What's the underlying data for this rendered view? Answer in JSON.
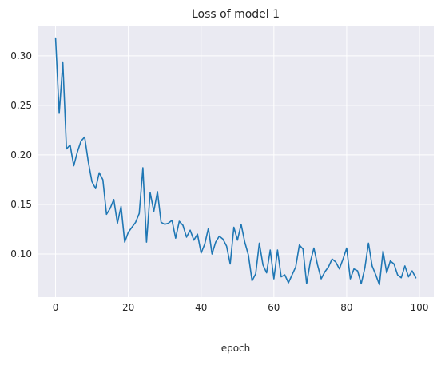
{
  "chart_data": {
    "type": "line",
    "title": "Loss of model 1",
    "xlabel": "epoch",
    "ylabel": "",
    "xlim": [
      -4.95,
      103.95
    ],
    "ylim": [
      0.0565,
      0.3305
    ],
    "xticks": [
      0,
      20,
      40,
      60,
      80,
      100
    ],
    "yticks": [
      0.1,
      0.15,
      0.2,
      0.25,
      0.3
    ],
    "xtick_labels": [
      "0",
      "20",
      "40",
      "60",
      "80",
      "100"
    ],
    "ytick_labels": [
      "0.10",
      "0.15",
      "0.20",
      "0.25",
      "0.30"
    ],
    "grid": true,
    "legend": false,
    "line_color": "#1f77b4",
    "background_color": "#eaeaf2",
    "series": [
      {
        "x": [
          0,
          1,
          2,
          3,
          4,
          5,
          6,
          7,
          8,
          9,
          10,
          11,
          12,
          13,
          14,
          15,
          16,
          17,
          18,
          19,
          20,
          21,
          22,
          23,
          24,
          25,
          26,
          27,
          28,
          29,
          30,
          31,
          32,
          33,
          34,
          35,
          36,
          37,
          38,
          39,
          40,
          41,
          42,
          43,
          44,
          45,
          46,
          47,
          48,
          49,
          50,
          51,
          52,
          53,
          54,
          55,
          56,
          57,
          58,
          59,
          60,
          61,
          62,
          63,
          64,
          65,
          66,
          67,
          68,
          69,
          70,
          71,
          72,
          73,
          74,
          75,
          76,
          77,
          78,
          79,
          80,
          81,
          82,
          83,
          84,
          85,
          86,
          87,
          88,
          89,
          90,
          91,
          92,
          93,
          94,
          95,
          96,
          97,
          98,
          99
        ],
        "values": [
          0.318,
          0.242,
          0.293,
          0.206,
          0.21,
          0.189,
          0.203,
          0.214,
          0.218,
          0.193,
          0.173,
          0.166,
          0.182,
          0.175,
          0.14,
          0.146,
          0.155,
          0.131,
          0.148,
          0.112,
          0.122,
          0.127,
          0.132,
          0.141,
          0.187,
          0.112,
          0.162,
          0.143,
          0.163,
          0.132,
          0.13,
          0.131,
          0.134,
          0.116,
          0.133,
          0.129,
          0.117,
          0.124,
          0.114,
          0.12,
          0.101,
          0.11,
          0.126,
          0.1,
          0.112,
          0.118,
          0.115,
          0.108,
          0.09,
          0.127,
          0.114,
          0.13,
          0.112,
          0.099,
          0.073,
          0.08,
          0.111,
          0.089,
          0.081,
          0.104,
          0.075,
          0.104,
          0.077,
          0.079,
          0.071,
          0.079,
          0.087,
          0.109,
          0.105,
          0.07,
          0.092,
          0.106,
          0.089,
          0.075,
          0.082,
          0.087,
          0.095,
          0.092,
          0.085,
          0.095,
          0.106,
          0.075,
          0.085,
          0.083,
          0.07,
          0.086,
          0.111,
          0.088,
          0.079,
          0.069,
          0.103,
          0.081,
          0.093,
          0.09,
          0.079,
          0.076,
          0.088,
          0.077,
          0.083,
          0.076
        ]
      }
    ]
  }
}
